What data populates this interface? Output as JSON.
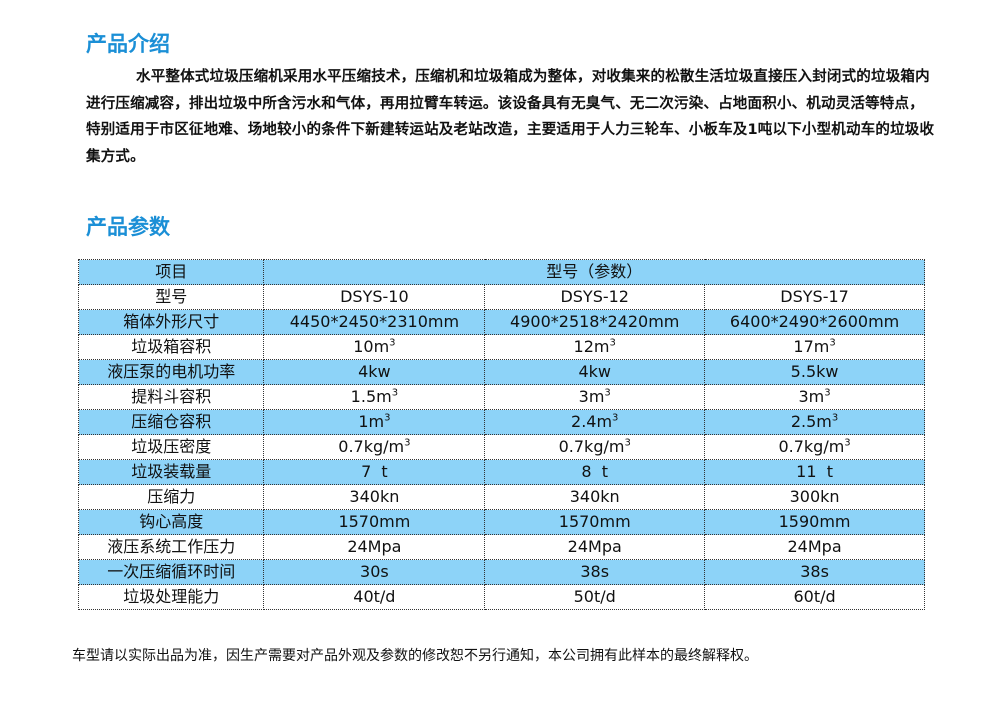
{
  "intro": {
    "title": "产品介绍",
    "text": "水平整体式垃圾压缩机采用水平压缩技术，压缩机和垃圾箱成为整体，对收集来的松散生活垃圾直接压入封闭式的垃圾箱内进行压缩减容，排出垃圾中所含污水和气体，再用拉臂车转运。该设备具有无臭气、无二次污染、占地面积小、机动灵活等特点，特别适用于市区征地难、场地较小的条件下新建转运站及老站改造，主要适用于人力三轮车、小板车及1吨以下小型机动车的垃圾收集方式。"
  },
  "params": {
    "title": "产品参数",
    "header": [
      "项目",
      "型号（参数）"
    ],
    "rows": [
      {
        "label": "型号",
        "values": [
          {
            "v": "DSYS-10"
          },
          {
            "v": "DSYS-12"
          },
          {
            "v": "DSYS-17"
          }
        ]
      },
      {
        "label": "箱体外形尺寸",
        "values": [
          {
            "v": "4450*2450*2310mm"
          },
          {
            "v": "4900*2518*2420mm"
          },
          {
            "v": "6400*2490*2600mm"
          }
        ]
      },
      {
        "label": "垃圾箱容积",
        "values": [
          {
            "v": "10m",
            "s": "3"
          },
          {
            "v": "12m",
            "s": "3"
          },
          {
            "v": "17m",
            "s": "3"
          }
        ]
      },
      {
        "label": "液压泵的电机功率",
        "values": [
          {
            "v": "4kw"
          },
          {
            "v": "4kw"
          },
          {
            "v": "5.5kw"
          }
        ]
      },
      {
        "label": "提料斗容积",
        "values": [
          {
            "v": "1.5m",
            "s": "3"
          },
          {
            "v": "3m",
            "s": "3"
          },
          {
            "v": "3m",
            "s": "3"
          }
        ]
      },
      {
        "label": "压缩仓容积",
        "values": [
          {
            "v": "1m",
            "s": "3"
          },
          {
            "v": "2.4m",
            "s": "3"
          },
          {
            "v": "2.5m",
            "s": "3"
          }
        ]
      },
      {
        "label": "垃圾压密度",
        "values": [
          {
            "v": "0.7kg/m",
            "s": "3"
          },
          {
            "v": "0.7kg/m",
            "s": "3"
          },
          {
            "v": "0.7kg/m",
            "s": "3"
          }
        ]
      },
      {
        "label": "垃圾装载量",
        "values": [
          {
            "v": "7  t"
          },
          {
            "v": "8  t"
          },
          {
            "v": "11  t"
          }
        ]
      },
      {
        "label": "压缩力",
        "values": [
          {
            "v": "340kn"
          },
          {
            "v": "340kn"
          },
          {
            "v": "300kn"
          }
        ]
      },
      {
        "label": "钩心高度",
        "values": [
          {
            "v": "1570mm"
          },
          {
            "v": "1570mm"
          },
          {
            "v": "1590mm"
          }
        ]
      },
      {
        "label": "液压系统工作压力",
        "values": [
          {
            "v": "24Mpa"
          },
          {
            "v": "24Mpa"
          },
          {
            "v": "24Mpa"
          }
        ]
      },
      {
        "label": "一次压缩循环时间",
        "values": [
          {
            "v": "30s"
          },
          {
            "v": "38s"
          },
          {
            "v": "38s"
          }
        ]
      },
      {
        "label": "垃圾处理能力",
        "values": [
          {
            "v": "40t/d"
          },
          {
            "v": "50t/d"
          },
          {
            "v": "60t/d"
          }
        ]
      }
    ]
  },
  "note": "车型请以实际出品为准，因生产需要对产品外观及参数的修改恕不另行通知，本公司拥有此样本的最终解释权。"
}
